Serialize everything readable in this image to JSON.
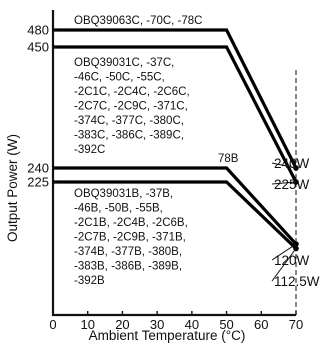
{
  "chart_data": {
    "type": "line",
    "title": "",
    "xlabel": "Ambient Temperature (°C)",
    "ylabel": "Output Power (W)",
    "xlim": [
      0,
      70
    ],
    "ylim": [
      0,
      500
    ],
    "x_ticks": [
      "0",
      "10",
      "20",
      "30",
      "40",
      "50",
      "60",
      "70"
    ],
    "y_ticks": [
      {
        "value": 225,
        "label": "225"
      },
      {
        "value": 240,
        "label": "240"
      },
      {
        "value": 450,
        "label": "450"
      },
      {
        "value": 480,
        "label": "480"
      }
    ],
    "grid": false,
    "series": [
      {
        "x": [
          0,
          50,
          70
        ],
        "y": [
          480,
          480,
          240
        ],
        "end_label": "240W"
      },
      {
        "x": [
          0,
          50,
          70
        ],
        "y": [
          450,
          450,
          225
        ],
        "end_label": "225W"
      },
      {
        "x": [
          0,
          50,
          70
        ],
        "y": [
          240,
          240,
          120
        ],
        "end_label": "120W"
      },
      {
        "x": [
          0,
          50,
          70
        ],
        "y": [
          225,
          225,
          112.5
        ],
        "end_label": "112.5W"
      }
    ],
    "reference_line": {
      "x": 70,
      "style": "dashed"
    },
    "annotations": [
      {
        "id": "c480",
        "lines": [
          "OBQ39063C, -70C, -78C"
        ]
      },
      {
        "id": "c450",
        "lines": [
          "OBQ39031C, -37C,",
          "-46C, -50C, -55C,",
          "-2C1C, -2C4C, -2C6C,",
          "-2C7C, -2C9C, -371C,",
          "-374C, -377C, -380C,",
          "-383C, -386C, -389C,",
          "-392C"
        ]
      },
      {
        "id": "c240",
        "lines": [
          "78B"
        ]
      },
      {
        "id": "c225",
        "lines": [
          "OBQ39031B, -37B,",
          "-46B, -50B, -55B,",
          "-2C1B, -2C4B, -2C6B,",
          "-2C7B, -2C9B, -371B,",
          "-374B, -377B, -380B,",
          "-383B, -386B, -389B,",
          "-392B"
        ]
      }
    ]
  }
}
